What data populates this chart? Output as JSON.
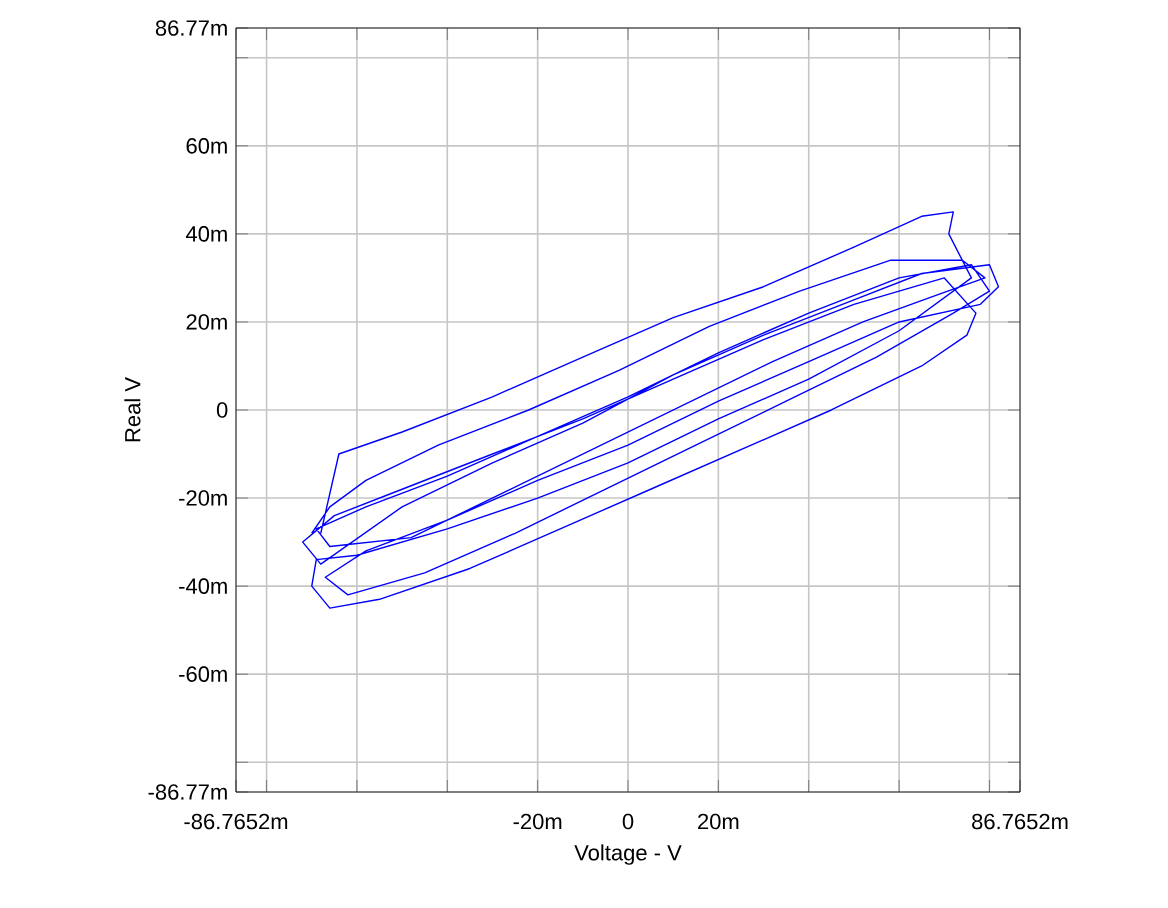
{
  "chart_data": {
    "type": "line",
    "xlabel": "Voltage - V",
    "ylabel": "Real V",
    "xlim": [
      -86.7652,
      86.7652
    ],
    "ylim": [
      -86.77,
      86.77
    ],
    "xticks": [
      {
        "value": -86.7652,
        "label": "-86.7652m"
      },
      {
        "value": -80,
        "label": null
      },
      {
        "value": -60,
        "label": null
      },
      {
        "value": -40,
        "label": null
      },
      {
        "value": -20,
        "label": "-20m"
      },
      0,
      {
        "value": 20,
        "label": "20m"
      },
      {
        "value": 40,
        "label": null
      },
      {
        "value": 60,
        "label": null
      },
      {
        "value": 80,
        "label": null
      },
      {
        "value": 86.7652,
        "label": "86.7652m"
      }
    ],
    "yticks": [
      {
        "value": -86.77,
        "label": "-86.77m"
      },
      {
        "value": -80,
        "label": null
      },
      {
        "value": -60,
        "label": "-60m"
      },
      {
        "value": -40,
        "label": "-40m"
      },
      {
        "value": -20,
        "label": "-20m"
      },
      0,
      {
        "value": 20,
        "label": "20m"
      },
      {
        "value": 40,
        "label": "40m"
      },
      {
        "value": 60,
        "label": "60m"
      },
      {
        "value": 80,
        "label": null
      },
      {
        "value": 86.77,
        "label": "86.77m"
      }
    ],
    "grid": true,
    "marker": "none",
    "line_style": "solid",
    "series": [
      {
        "color": "#0000ff",
        "x": [
          -68,
          -64,
          -50,
          -30,
          -10,
          10,
          30,
          50,
          65,
          72,
          71,
          76,
          60,
          40,
          20,
          0,
          -20,
          -40,
          -60,
          -69,
          -70,
          -66,
          -55,
          -35,
          -15,
          5,
          25,
          45,
          65,
          75,
          77,
          70,
          50,
          30,
          10,
          -10,
          -30,
          -50,
          -65,
          -72,
          -68,
          -50,
          -30,
          -10,
          10,
          30,
          50,
          65,
          80,
          82,
          78,
          60,
          40,
          20,
          0,
          -20,
          -40,
          -58,
          -67,
          -62,
          -45,
          -25,
          -5,
          15,
          35,
          55,
          72,
          80,
          76,
          60,
          40,
          20,
          0,
          -20,
          -40,
          -58,
          -69,
          -66,
          -48,
          -28,
          -8,
          12,
          32,
          52,
          68,
          79,
          74,
          58,
          38,
          18,
          -2,
          -22,
          -42,
          -58,
          -66,
          -70
        ],
        "values": [
          -28,
          -10,
          -5,
          3,
          12,
          21,
          28,
          37,
          44,
          45,
          40,
          30,
          18,
          7,
          -2,
          -12,
          -20,
          -27,
          -33,
          -34,
          -40,
          -45,
          -43,
          -36,
          -27,
          -18,
          -9,
          0,
          10,
          17,
          22,
          30,
          24,
          16,
          7,
          -2,
          -10,
          -18,
          -24,
          -30,
          -35,
          -22,
          -12,
          -3,
          8,
          17,
          25,
          31,
          33,
          28,
          24,
          20,
          11,
          2,
          -8,
          -16,
          -25,
          -32,
          -38,
          -42,
          -37,
          -28,
          -18,
          -8,
          2,
          12,
          22,
          27,
          33,
          30,
          22,
          13,
          3,
          -6,
          -15,
          -22,
          -27,
          -31,
          -29,
          -19,
          -9,
          1,
          11,
          20,
          26,
          30,
          34,
          34,
          27,
          19,
          9,
          0,
          -8,
          -16,
          -22,
          -28
        ]
      }
    ]
  }
}
